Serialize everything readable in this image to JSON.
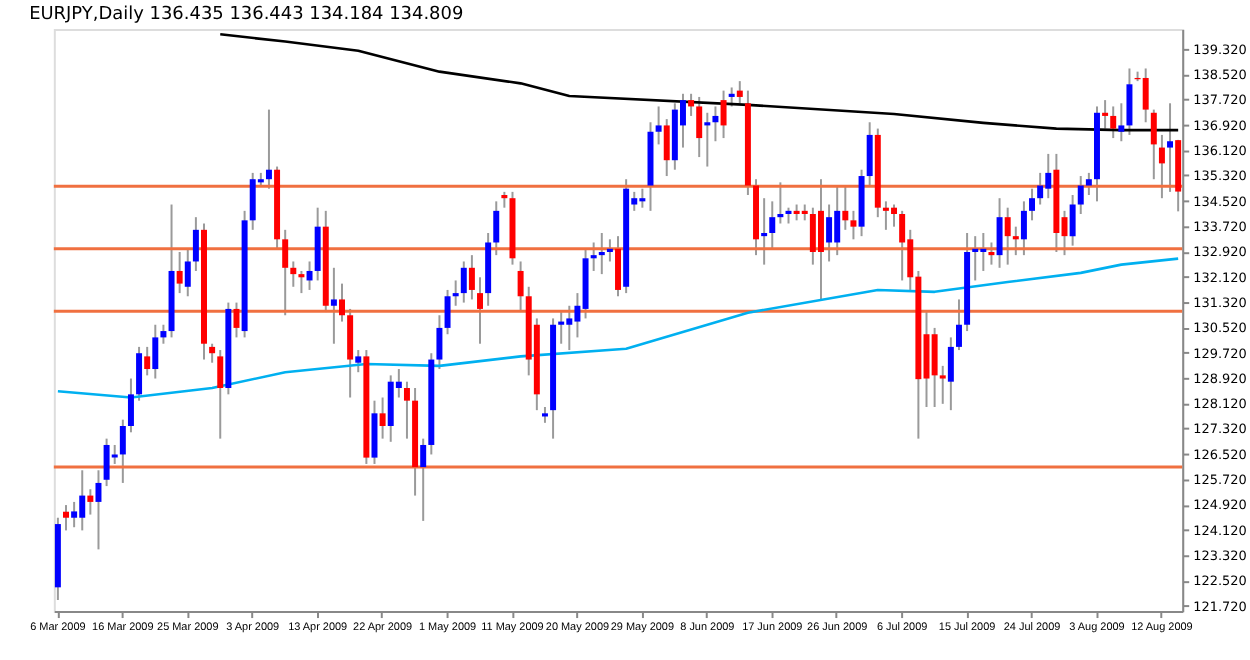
{
  "chart_data": {
    "type": "candlestick",
    "title": "EURJPY,Daily  136.435 136.443 134.184 134.809",
    "categories": [
      "6 Mar 2009",
      null,
      null,
      null,
      null,
      null,
      null,
      null,
      "16 Mar 2009",
      null,
      null,
      null,
      null,
      null,
      null,
      null,
      "25 Mar 2009",
      null,
      null,
      null,
      null,
      null,
      null,
      null,
      "3 Apr 2009",
      null,
      null,
      null,
      null,
      null,
      null,
      null,
      "13 Apr 2009",
      null,
      null,
      null,
      null,
      null,
      null,
      null,
      "22 Apr 2009",
      null,
      null,
      null,
      null,
      null,
      null,
      null,
      "1 May 2009",
      null,
      null,
      null,
      null,
      null,
      null,
      null,
      "11 May 2009",
      null,
      null,
      null,
      null,
      null,
      null,
      null,
      "20 May 2009",
      null,
      null,
      null,
      null,
      null,
      null,
      null,
      "29 May 2009",
      null,
      null,
      null,
      null,
      null,
      null,
      null,
      "8 Jun 2009",
      null,
      null,
      null,
      null,
      null,
      null,
      null,
      "17 Jun 2009",
      null,
      null,
      null,
      null,
      null,
      null,
      null,
      "26 Jun 2009",
      null,
      null,
      null,
      null,
      null,
      null,
      null,
      "6 Jul 2009",
      null,
      null,
      null,
      null,
      null,
      null,
      null,
      "15 Jul 2009",
      null,
      null,
      null,
      null,
      null,
      null,
      null,
      "24 Jul 2009",
      null,
      null,
      null,
      null,
      null,
      null,
      null,
      "3 Aug 2009",
      null,
      null,
      null,
      null,
      null,
      null,
      null,
      "12 Aug 2009",
      null,
      null
    ],
    "ohlc": [
      [
        122.3,
        124.5,
        121.9,
        124.3
      ],
      [
        124.69,
        124.9,
        124.1,
        124.5
      ],
      [
        124.5,
        125.0,
        124.2,
        124.7
      ],
      [
        124.5,
        126.0,
        124.1,
        125.2
      ],
      [
        125.2,
        125.4,
        124.6,
        125.0
      ],
      [
        125.0,
        126.0,
        123.5,
        125.6
      ],
      [
        125.7,
        127.0,
        125.5,
        126.8
      ],
      [
        126.4,
        126.8,
        126.2,
        126.5
      ],
      [
        126.5,
        127.6,
        125.6,
        127.4
      ],
      [
        127.4,
        128.9,
        127.2,
        128.4
      ],
      [
        128.4,
        129.9,
        128.2,
        129.7
      ],
      [
        129.6,
        129.9,
        129.0,
        129.2
      ],
      [
        129.2,
        130.6,
        128.9,
        130.2
      ],
      [
        130.2,
        130.6,
        130.0,
        130.4
      ],
      [
        130.4,
        134.4,
        130.2,
        132.3
      ],
      [
        132.3,
        132.9,
        131.6,
        131.9
      ],
      [
        131.8,
        133.0,
        131.5,
        132.6
      ],
      [
        132.6,
        134.0,
        132.3,
        133.6
      ],
      [
        133.6,
        133.8,
        129.5,
        130.0
      ],
      [
        129.9,
        130.0,
        129.4,
        129.7
      ],
      [
        129.6,
        129.8,
        127.0,
        128.6
      ],
      [
        128.6,
        131.3,
        128.4,
        131.1
      ],
      [
        131.1,
        131.3,
        130.2,
        130.5
      ],
      [
        130.4,
        134.2,
        130.2,
        133.9
      ],
      [
        133.9,
        135.4,
        133.6,
        135.2
      ],
      [
        135.1,
        135.4,
        135.0,
        135.2
      ],
      [
        135.2,
        137.4,
        134.9,
        135.5
      ],
      [
        135.5,
        135.6,
        133.0,
        133.3
      ],
      [
        133.3,
        133.6,
        130.9,
        132.4
      ],
      [
        132.4,
        132.6,
        131.8,
        132.2
      ],
      [
        132.2,
        132.3,
        131.6,
        132.1
      ],
      [
        132.0,
        132.6,
        131.7,
        132.3
      ],
      [
        132.3,
        134.3,
        132.0,
        133.7
      ],
      [
        133.7,
        134.2,
        131.0,
        131.2
      ],
      [
        131.2,
        132.4,
        130.0,
        131.4
      ],
      [
        131.4,
        131.9,
        130.7,
        130.9
      ],
      [
        130.9,
        131.1,
        128.3,
        129.5
      ],
      [
        129.4,
        129.8,
        129.1,
        129.6
      ],
      [
        129.6,
        129.8,
        126.2,
        126.4
      ],
      [
        126.4,
        128.2,
        126.2,
        127.8
      ],
      [
        127.8,
        128.3,
        127.0,
        127.4
      ],
      [
        127.4,
        129.0,
        126.9,
        128.8
      ],
      [
        128.6,
        129.2,
        128.3,
        128.8
      ],
      [
        128.6,
        128.8,
        127.0,
        128.2
      ],
      [
        128.2,
        128.6,
        125.2,
        126.1
      ],
      [
        126.1,
        127.0,
        124.4,
        126.8
      ],
      [
        126.8,
        129.7,
        126.5,
        129.5
      ],
      [
        129.5,
        130.9,
        129.2,
        130.5
      ],
      [
        130.5,
        131.7,
        130.3,
        131.5
      ],
      [
        131.5,
        132.0,
        131.2,
        131.6
      ],
      [
        131.6,
        132.6,
        131.3,
        132.4
      ],
      [
        132.4,
        132.8,
        131.4,
        131.7
      ],
      [
        131.6,
        132.1,
        130.0,
        131.1
      ],
      [
        131.6,
        133.5,
        131.2,
        133.2
      ],
      [
        133.2,
        134.5,
        132.8,
        134.2
      ],
      [
        134.7,
        134.8,
        134.3,
        134.6
      ],
      [
        134.6,
        134.8,
        132.5,
        132.7
      ],
      [
        132.3,
        132.6,
        131.0,
        131.5
      ],
      [
        131.5,
        131.8,
        129.0,
        129.5
      ],
      [
        130.6,
        130.8,
        127.9,
        128.4
      ],
      [
        127.7,
        128.0,
        127.5,
        127.8
      ],
      [
        127.9,
        130.8,
        127.0,
        130.6
      ],
      [
        130.6,
        131.0,
        130.0,
        130.7
      ],
      [
        130.6,
        131.2,
        129.8,
        130.8
      ],
      [
        130.7,
        131.6,
        130.2,
        131.2
      ],
      [
        131.1,
        133.0,
        130.8,
        132.7
      ],
      [
        132.7,
        133.2,
        132.3,
        132.8
      ],
      [
        132.8,
        133.5,
        132.2,
        132.9
      ],
      [
        132.9,
        133.3,
        132.6,
        133.0
      ],
      [
        133.0,
        133.4,
        131.5,
        131.7
      ],
      [
        131.8,
        135.2,
        131.6,
        134.9
      ],
      [
        134.4,
        134.8,
        134.2,
        134.6
      ],
      [
        134.5,
        134.9,
        134.3,
        134.6
      ],
      [
        135.0,
        137.0,
        134.2,
        136.7
      ],
      [
        136.7,
        137.5,
        136.3,
        136.9
      ],
      [
        136.9,
        137.1,
        135.3,
        135.8
      ],
      [
        135.8,
        137.6,
        135.5,
        137.4
      ],
      [
        136.9,
        137.9,
        136.2,
        137.7
      ],
      [
        137.7,
        137.9,
        137.2,
        137.5
      ],
      [
        137.5,
        137.8,
        135.9,
        136.5
      ],
      [
        136.9,
        137.3,
        135.6,
        137.0
      ],
      [
        137.0,
        137.5,
        136.4,
        137.2
      ],
      [
        137.7,
        138.0,
        136.5,
        136.9
      ],
      [
        137.8,
        138.1,
        137.5,
        137.9
      ],
      [
        138.0,
        138.3,
        137.6,
        137.8
      ],
      [
        137.6,
        138.0,
        134.7,
        135.0
      ],
      [
        135.0,
        135.2,
        132.8,
        133.3
      ],
      [
        133.4,
        134.6,
        132.5,
        133.5
      ],
      [
        133.5,
        134.5,
        133.0,
        134.0
      ],
      [
        134.0,
        135.1,
        133.8,
        134.1
      ],
      [
        134.1,
        134.3,
        133.8,
        134.2
      ],
      [
        134.2,
        134.4,
        133.9,
        134.1
      ],
      [
        134.2,
        134.4,
        133.9,
        134.1
      ],
      [
        134.1,
        134.3,
        132.5,
        132.9
      ],
      [
        134.2,
        135.2,
        131.4,
        132.9
      ],
      [
        133.2,
        134.4,
        132.6,
        134.0
      ],
      [
        133.2,
        135.0,
        132.8,
        134.2
      ],
      [
        134.2,
        135.0,
        133.6,
        133.9
      ],
      [
        133.9,
        134.2,
        133.3,
        133.7
      ],
      [
        133.7,
        135.5,
        133.4,
        135.3
      ],
      [
        135.3,
        137.0,
        135.0,
        136.6
      ],
      [
        136.6,
        136.8,
        134.0,
        134.3
      ],
      [
        134.3,
        134.5,
        133.6,
        134.2
      ],
      [
        134.3,
        134.4,
        133.7,
        134.1
      ],
      [
        134.1,
        134.2,
        132.0,
        133.2
      ],
      [
        133.3,
        133.6,
        131.7,
        132.1
      ],
      [
        132.12,
        132.3,
        127.0,
        128.88
      ],
      [
        130.3,
        131.0,
        128.0,
        128.9
      ],
      [
        130.3,
        130.5,
        128.0,
        129.0
      ],
      [
        129.0,
        129.3,
        128.1,
        128.9
      ],
      [
        128.8,
        130.2,
        127.9,
        129.9
      ],
      [
        129.9,
        131.4,
        129.8,
        130.6
      ],
      [
        130.6,
        133.5,
        130.4,
        132.9
      ],
      [
        132.9,
        133.4,
        132.0,
        133.0
      ],
      [
        132.9,
        133.5,
        132.3,
        133.0
      ],
      [
        132.9,
        133.2,
        132.5,
        132.8
      ],
      [
        132.8,
        134.6,
        132.4,
        134.0
      ],
      [
        134.0,
        134.3,
        132.5,
        133.4
      ],
      [
        133.4,
        133.7,
        132.8,
        133.3
      ],
      [
        133.3,
        134.5,
        132.8,
        134.2
      ],
      [
        134.2,
        134.9,
        133.9,
        134.6
      ],
      [
        134.6,
        135.4,
        134.4,
        135.0
      ],
      [
        134.9,
        136.0,
        134.6,
        135.4
      ],
      [
        135.5,
        136.0,
        132.9,
        133.5
      ],
      [
        134.0,
        134.2,
        132.8,
        133.4
      ],
      [
        133.4,
        134.7,
        133.1,
        134.4
      ],
      [
        134.4,
        135.3,
        134.1,
        135.0
      ],
      [
        135.0,
        135.4,
        134.7,
        135.2
      ],
      [
        135.2,
        137.5,
        134.5,
        137.3
      ],
      [
        137.3,
        137.7,
        136.8,
        137.2
      ],
      [
        137.2,
        137.5,
        136.5,
        136.8
      ],
      [
        136.7,
        137.6,
        136.4,
        136.9
      ],
      [
        136.9,
        138.7,
        136.6,
        138.2
      ],
      [
        138.4,
        138.6,
        138.3,
        138.36
      ],
      [
        138.4,
        138.7,
        137.0,
        137.4
      ],
      [
        137.3,
        137.4,
        135.2,
        136.3
      ],
      [
        136.2,
        136.6,
        134.6,
        135.7
      ],
      [
        136.2,
        137.6,
        134.8,
        136.4
      ],
      [
        136.435,
        136.443,
        134.184,
        134.809
      ]
    ],
    "colors": [
      "#0000ff",
      "#ff0000",
      "#0000ff",
      "#0000ff",
      "#ff0000",
      "#0000ff",
      "#0000ff",
      "#0000ff",
      "#0000ff",
      "#0000ff",
      "#0000ff",
      "#ff0000",
      "#0000ff",
      "#0000ff",
      "#0000ff",
      "#ff0000",
      "#0000ff",
      "#0000ff",
      "#ff0000",
      "#ff0000",
      "#ff0000",
      "#0000ff",
      "#ff0000",
      "#0000ff",
      "#0000ff",
      "#0000ff",
      "#0000ff",
      "#ff0000",
      "#ff0000",
      "#ff0000",
      "#ff0000",
      "#0000ff",
      "#0000ff",
      "#ff0000",
      "#0000ff",
      "#ff0000",
      "#ff0000",
      "#0000ff",
      "#ff0000",
      "#0000ff",
      "#ff0000",
      "#0000ff",
      "#0000ff",
      "#ff0000",
      "#ff0000",
      "#0000ff",
      "#0000ff",
      "#0000ff",
      "#0000ff",
      "#0000ff",
      "#0000ff",
      "#ff0000",
      "#ff0000",
      "#0000ff",
      "#0000ff",
      "#ff0000",
      "#ff0000",
      "#ff0000",
      "#ff0000",
      "#ff0000",
      "#0000ff",
      "#0000ff",
      "#0000ff",
      "#0000ff",
      "#0000ff",
      "#0000ff",
      "#0000ff",
      "#0000ff",
      "#0000ff",
      "#ff0000",
      "#0000ff",
      "#0000ff",
      "#0000ff",
      "#0000ff",
      "#0000ff",
      "#ff0000",
      "#0000ff",
      "#0000ff",
      "#ff0000",
      "#ff0000",
      "#0000ff",
      "#0000ff",
      "#ff0000",
      "#0000ff",
      "#ff0000",
      "#ff0000",
      "#ff0000",
      "#0000ff",
      "#0000ff",
      "#0000ff",
      "#0000ff",
      "#ff0000",
      "#ff0000",
      "#ff0000",
      "#ff0000",
      "#0000ff",
      "#0000ff",
      "#ff0000",
      "#ff0000",
      "#0000ff",
      "#0000ff",
      "#ff0000",
      "#ff0000",
      "#ff0000",
      "#ff0000",
      "#ff0000",
      "#ff0000",
      "#ff0000",
      "#ff0000",
      "#ff0000",
      "#0000ff",
      "#0000ff",
      "#0000ff",
      "#0000ff",
      "#0000ff",
      "#ff0000",
      "#0000ff",
      "#ff0000",
      "#ff0000",
      "#0000ff",
      "#0000ff",
      "#0000ff",
      "#0000ff",
      "#ff0000",
      "#ff0000",
      "#0000ff",
      "#0000ff",
      "#0000ff",
      "#0000ff",
      "#ff0000",
      "#ff0000",
      "#0000ff",
      "#0000ff",
      "#ff0000",
      "#ff0000",
      "#ff0000",
      "#ff0000",
      "#0000ff",
      "#ff0000"
    ],
    "series": [
      {
        "type": "line",
        "color": "#000000",
        "values": [
          null,
          null,
          null,
          null,
          null,
          null,
          null,
          null,
          null,
          null,
          null,
          null,
          null,
          null,
          null,
          null,
          null,
          null,
          null,
          null,
          139.78,
          null,
          null,
          null,
          null,
          null,
          null,
          null,
          139.55,
          null,
          null,
          null,
          null,
          null,
          null,
          null,
          null,
          139.26,
          null,
          null,
          null,
          null,
          null,
          null,
          null,
          null,
          null,
          138.6,
          null,
          null,
          null,
          null,
          null,
          null,
          null,
          null,
          null,
          138.23,
          null,
          null,
          null,
          null,
          null,
          137.83,
          null,
          null,
          null,
          null,
          null,
          null,
          null,
          null,
          null,
          null,
          null,
          null,
          null,
          null,
          null,
          null,
          null,
          null,
          null,
          null,
          null,
          137.55,
          null,
          null,
          null,
          null,
          null,
          null,
          null,
          null,
          null,
          null,
          null,
          null,
          null,
          null,
          null,
          null,
          null,
          137.26,
          null,
          null,
          null,
          null,
          null,
          null,
          null,
          null,
          null,
          null,
          136.98,
          null,
          null,
          null,
          null,
          null,
          null,
          null,
          null,
          136.8,
          null,
          null,
          null,
          null,
          null,
          null,
          null,
          136.75,
          null,
          null,
          null,
          null,
          null,
          null,
          136.75
        ]
      },
      {
        "type": "line",
        "color": "#00b0f0",
        "values": [
          128.5,
          null,
          null,
          null,
          null,
          null,
          null,
          null,
          null,
          128.3,
          null,
          null,
          null,
          null,
          null,
          null,
          null,
          null,
          null,
          128.6,
          null,
          null,
          null,
          null,
          null,
          null,
          null,
          null,
          129.1,
          null,
          null,
          null,
          null,
          null,
          null,
          null,
          null,
          null,
          129.36,
          null,
          null,
          null,
          null,
          null,
          null,
          null,
          null,
          129.3,
          null,
          null,
          null,
          null,
          null,
          null,
          null,
          null,
          null,
          129.6,
          null,
          null,
          null,
          null,
          null,
          null,
          null,
          null,
          null,
          null,
          null,
          null,
          129.84,
          null,
          null,
          null,
          null,
          null,
          null,
          null,
          null,
          null,
          null,
          null,
          null,
          null,
          null,
          130.98,
          null,
          null,
          null,
          null,
          null,
          null,
          null,
          null,
          null,
          null,
          null,
          null,
          null,
          null,
          null,
          131.7,
          null,
          null,
          null,
          null,
          null,
          null,
          131.64,
          null,
          null,
          null,
          null,
          null,
          null,
          null,
          null,
          131.95,
          null,
          null,
          null,
          null,
          null,
          null,
          null,
          null,
          132.24,
          null,
          null,
          null,
          null,
          132.5,
          null,
          null,
          null,
          null,
          null,
          null,
          132.69
        ]
      }
    ],
    "ref_lines": [
      {
        "axis": "y",
        "value": 134.98,
        "color": "#f07040"
      },
      {
        "axis": "y",
        "value": 133.0,
        "color": "#f07040"
      },
      {
        "axis": "y",
        "value": 131.03,
        "color": "#f07040"
      },
      {
        "axis": "y",
        "value": 126.1,
        "color": "#f07040"
      }
    ],
    "ylim": [
      121.55,
      139.95
    ],
    "yticks": [
      {
        "value": 121.72,
        "label": "121.720"
      },
      {
        "value": 122.52,
        "label": "122.520"
      },
      {
        "value": 123.32,
        "label": "123.320"
      },
      {
        "value": 124.12,
        "label": "124.120"
      },
      {
        "value": 124.92,
        "label": "124.920"
      },
      {
        "value": 125.72,
        "label": "125.720"
      },
      {
        "value": 126.52,
        "label": "126.520"
      },
      {
        "value": 127.32,
        "label": "127.320"
      },
      {
        "value": 128.12,
        "label": "128.120"
      },
      {
        "value": 128.92,
        "label": "128.920"
      },
      {
        "value": 129.72,
        "label": "129.720"
      },
      {
        "value": 130.52,
        "label": "130.520"
      },
      {
        "value": 131.32,
        "label": "131.320"
      },
      {
        "value": 132.12,
        "label": "132.120"
      },
      {
        "value": 132.92,
        "label": "132.920"
      },
      {
        "value": 133.72,
        "label": "133.720"
      },
      {
        "value": 134.52,
        "label": "134.520"
      },
      {
        "value": 135.32,
        "label": "135.320"
      },
      {
        "value": 136.12,
        "label": "136.120"
      },
      {
        "value": 136.92,
        "label": "136.920"
      },
      {
        "value": 137.72,
        "label": "137.720"
      },
      {
        "value": 138.52,
        "label": "138.520"
      },
      {
        "value": 139.32,
        "label": "139.320"
      }
    ]
  }
}
